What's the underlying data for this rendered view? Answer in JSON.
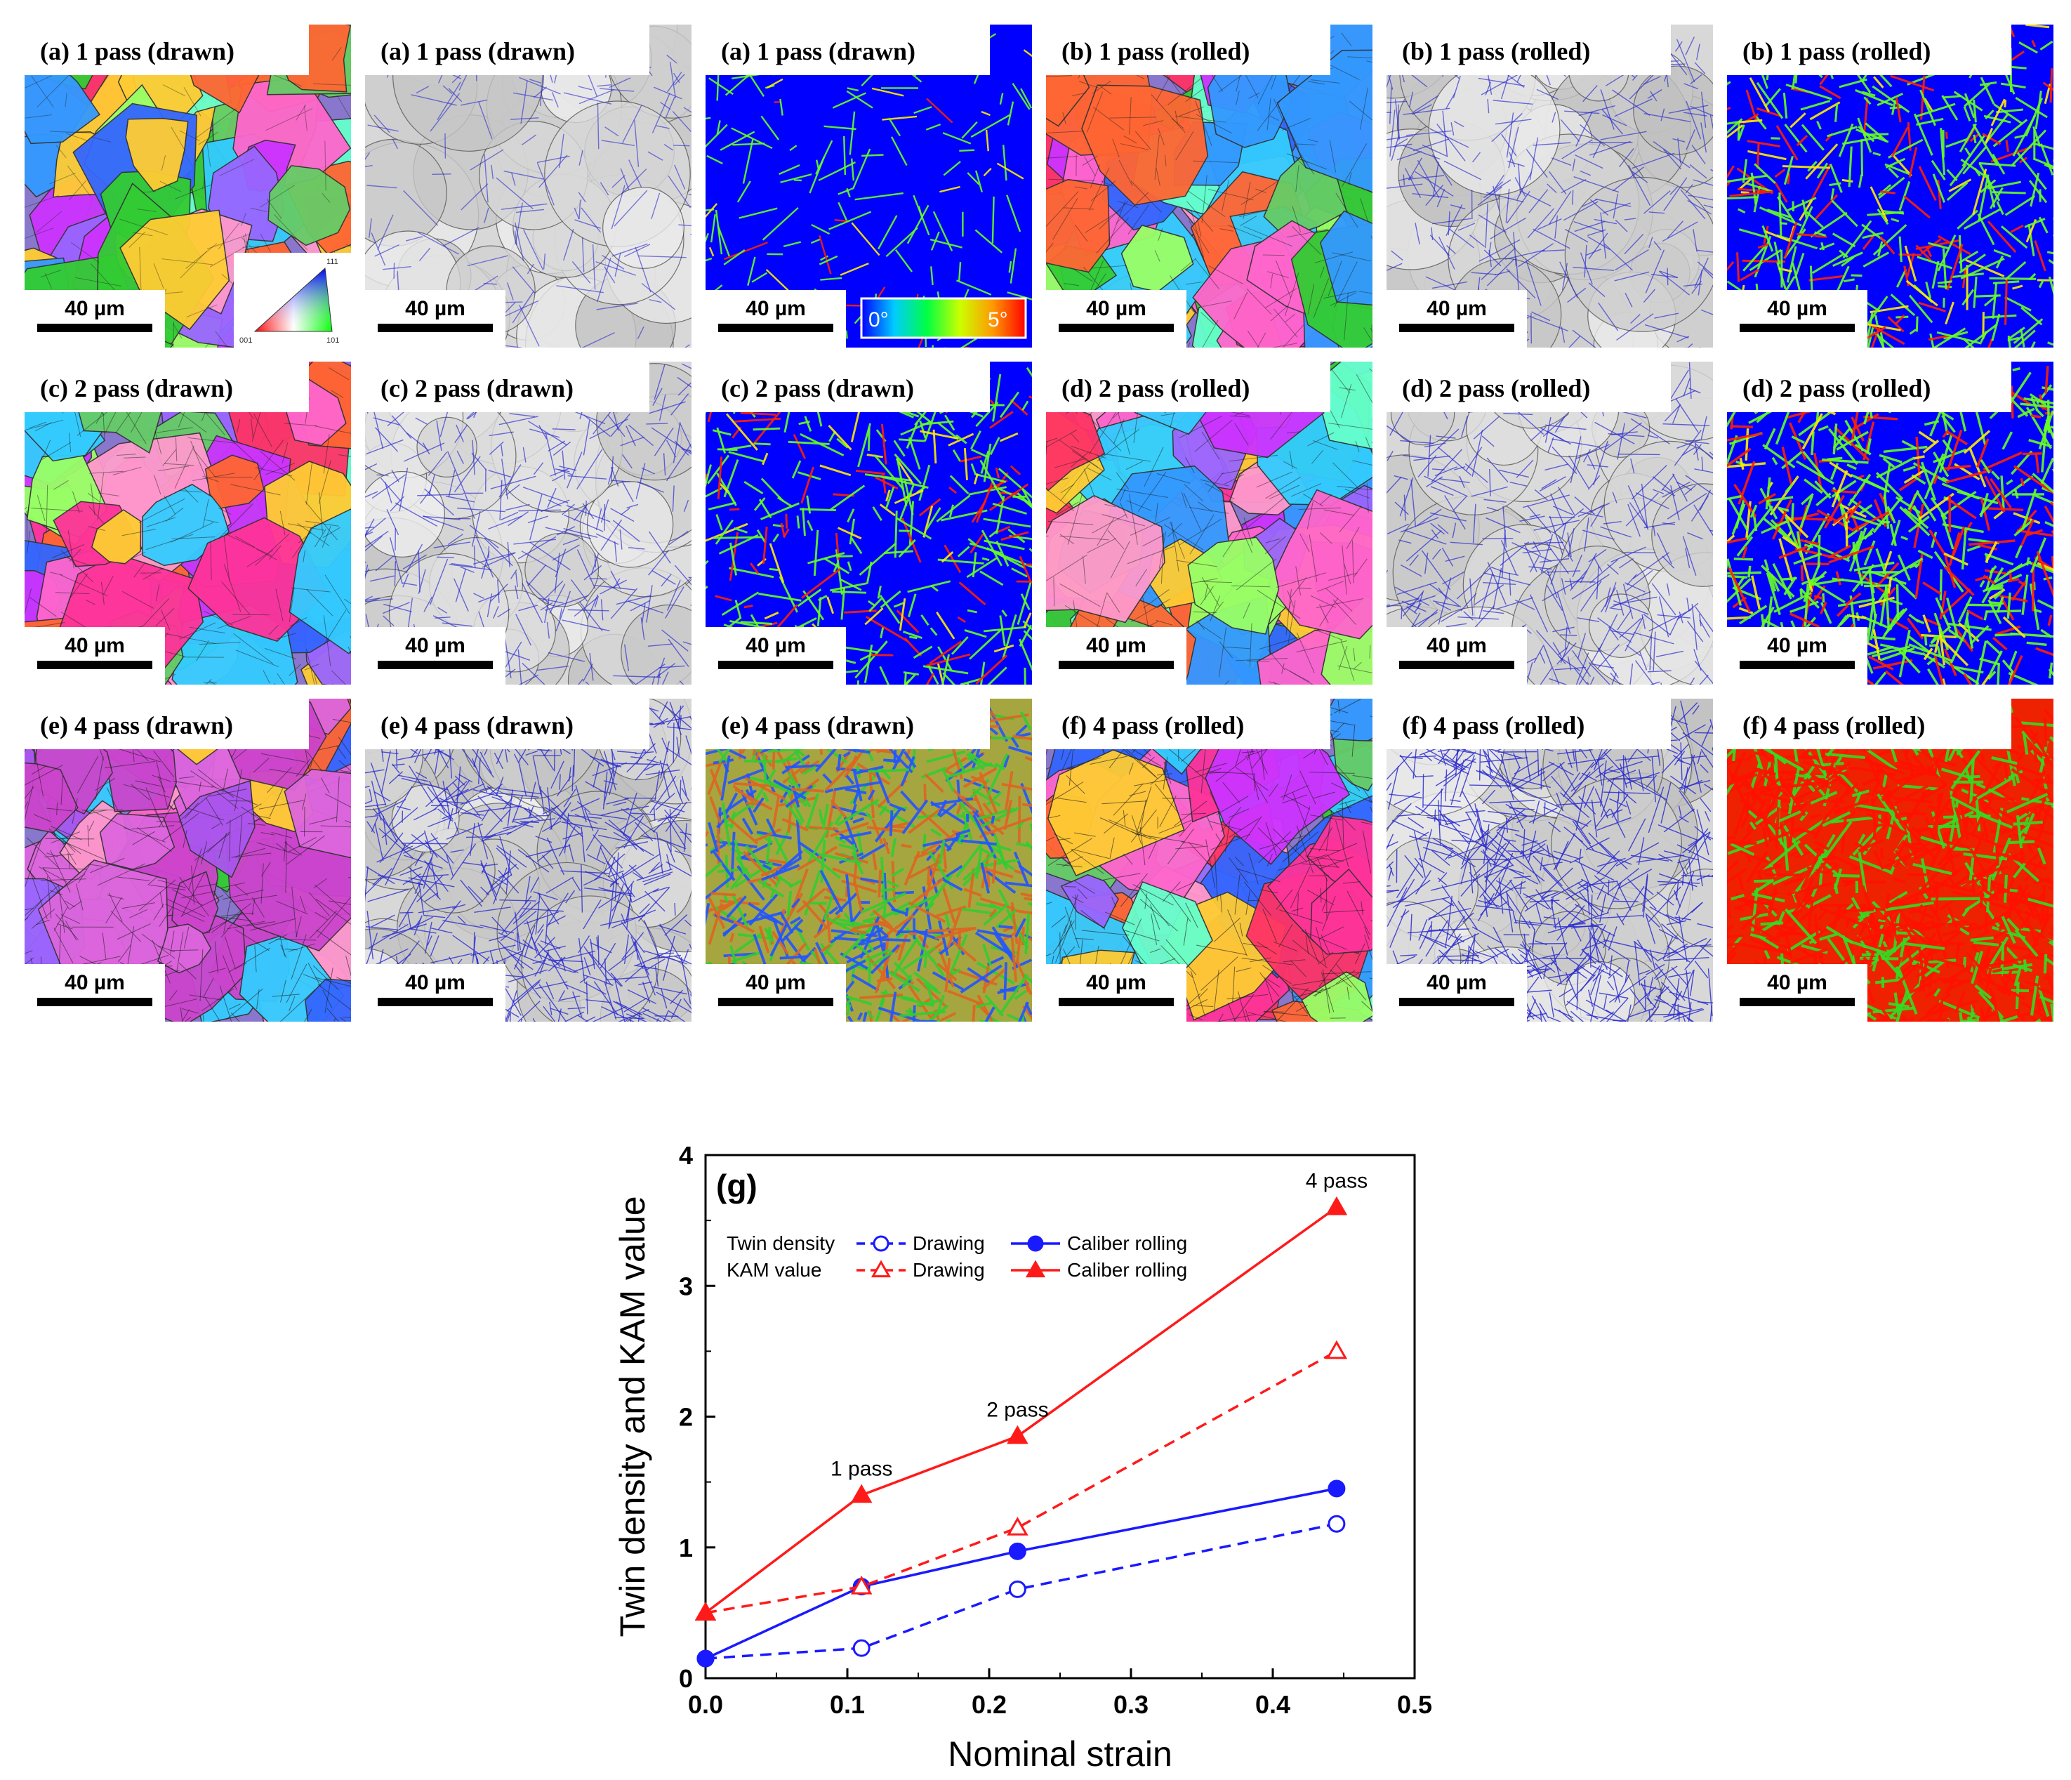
{
  "figure": {
    "panels": [
      {
        "label": "(a) 1 pass (drawn)",
        "kind": "ipf",
        "intensity": 0.15,
        "scale": "40 µm",
        "extra": "ipf-legend"
      },
      {
        "label": "(a) 1 pass (drawn)",
        "kind": "iq",
        "intensity": 0.15,
        "scale": "40 µm"
      },
      {
        "label": "(a) 1 pass (drawn)",
        "kind": "kam",
        "intensity": 0.12,
        "scale": "40 µm",
        "extra": "kam-legend"
      },
      {
        "label": "(b) 1 pass (rolled)",
        "kind": "ipf",
        "intensity": 0.4,
        "scale": "40 µm"
      },
      {
        "label": "(b) 1 pass (rolled)",
        "kind": "iq",
        "intensity": 0.35,
        "scale": "40 µm"
      },
      {
        "label": "(b) 1 pass (rolled)",
        "kind": "kam",
        "intensity": 0.42,
        "scale": "40 µm"
      },
      {
        "label": "(c) 2 pass (drawn)",
        "kind": "ipf",
        "intensity": 0.45,
        "scale": "40 µm"
      },
      {
        "label": "(c) 2 pass (drawn)",
        "kind": "iq",
        "intensity": 0.4,
        "scale": "40 µm"
      },
      {
        "label": "(c) 2 pass (drawn)",
        "kind": "kam",
        "intensity": 0.35,
        "scale": "40 µm"
      },
      {
        "label": "(d) 2 pass (rolled)",
        "kind": "ipf",
        "intensity": 0.5,
        "scale": "40 µm"
      },
      {
        "label": "(d) 2 pass (rolled)",
        "kind": "iq",
        "intensity": 0.5,
        "scale": "40 µm"
      },
      {
        "label": "(d) 2 pass (rolled)",
        "kind": "kam",
        "intensity": 0.6,
        "scale": "40 µm"
      },
      {
        "label": "(e) 4 pass (drawn)",
        "kind": "ipf",
        "intensity": 0.8,
        "scale": "40 µm"
      },
      {
        "label": "(e) 4 pass (drawn)",
        "kind": "iq",
        "intensity": 0.8,
        "scale": "40 µm"
      },
      {
        "label": "(e) 4 pass (drawn)",
        "kind": "kam",
        "intensity": 0.8,
        "scale": "40 µm"
      },
      {
        "label": "(f) 4 pass (rolled)",
        "kind": "ipf",
        "intensity": 0.85,
        "scale": "40 µm"
      },
      {
        "label": "(f) 4 pass (rolled)",
        "kind": "iq",
        "intensity": 0.95,
        "scale": "40 µm"
      },
      {
        "label": "(f) 4 pass (rolled)",
        "kind": "kam",
        "intensity": 0.95,
        "scale": "40 µm"
      }
    ],
    "ipf_legend": {
      "top": "111",
      "bottom_left": "001",
      "bottom_right": "101"
    },
    "kam_legend": {
      "min": "0°",
      "max": "5°"
    }
  },
  "chart_data": {
    "type": "line",
    "panel_label": "(g)",
    "xlabel": "Nominal strain",
    "ylabel": "Twin density and KAM value",
    "xlim": [
      0.0,
      0.5
    ],
    "ylim": [
      0,
      4
    ],
    "xticks": [
      "0.0",
      "0.1",
      "0.2",
      "0.3",
      "0.4",
      "0.5"
    ],
    "yticks": [
      "0",
      "1",
      "2",
      "3",
      "4"
    ],
    "x": [
      0.0,
      0.11,
      0.22,
      0.445
    ],
    "series": [
      {
        "name": "Twin density Drawing",
        "group": "Twin density",
        "method": "Drawing",
        "values": [
          0.15,
          0.23,
          0.68,
          1.18
        ],
        "color": "#1a1aff",
        "dashed": true,
        "marker": "circle",
        "filled": false
      },
      {
        "name": "Twin density Caliber rolling",
        "group": "Twin density",
        "method": "Caliber rolling",
        "values": [
          0.15,
          0.7,
          0.97,
          1.45
        ],
        "color": "#1a1aff",
        "dashed": false,
        "marker": "circle",
        "filled": true
      },
      {
        "name": "KAM value Drawing",
        "group": "KAM value",
        "method": "Drawing",
        "values": [
          0.5,
          0.7,
          1.15,
          2.5
        ],
        "color": "#ff1a1a",
        "dashed": true,
        "marker": "triangle",
        "filled": false
      },
      {
        "name": "KAM value Caliber rolling",
        "group": "KAM value",
        "method": "Caliber rolling",
        "values": [
          0.5,
          1.4,
          1.85,
          3.6
        ],
        "color": "#ff1a1a",
        "dashed": false,
        "marker": "triangle",
        "filled": true
      }
    ],
    "legend": {
      "rows": [
        {
          "label": "Twin density",
          "items": [
            "Drawing",
            "Caliber rolling"
          ]
        },
        {
          "label": "KAM value",
          "items": [
            "Drawing",
            "Caliber rolling"
          ]
        }
      ],
      "placement": "top-left"
    },
    "annotations": [
      {
        "text": "1 pass",
        "x": 0.11,
        "y": 1.55
      },
      {
        "text": "2 pass",
        "x": 0.22,
        "y": 2.0
      },
      {
        "text": "4 pass",
        "x": 0.445,
        "y": 3.75
      }
    ]
  }
}
